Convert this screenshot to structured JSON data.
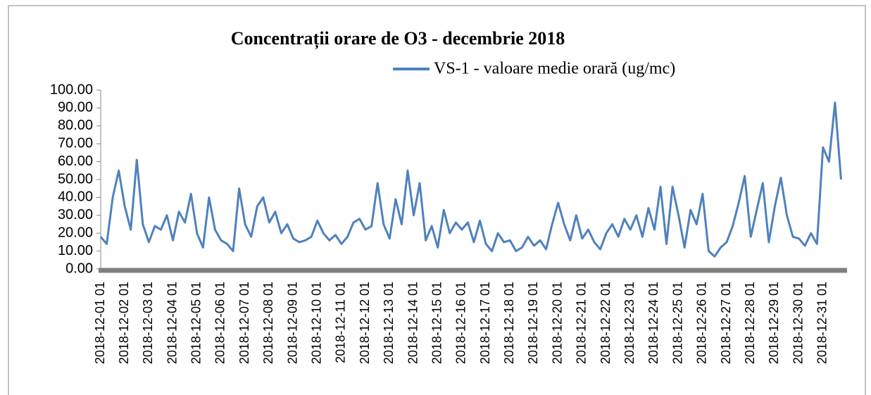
{
  "chart_data": {
    "type": "line",
    "title": "Concentrații orare de O3 - decembrie 2018",
    "categories": [
      "2018-12-01 01",
      null,
      null,
      null,
      "2018-12-02 01",
      null,
      null,
      null,
      "2018-12-03 01",
      null,
      null,
      null,
      "2018-12-04 01",
      null,
      null,
      null,
      "2018-12-05 01",
      null,
      null,
      null,
      "2018-12-06 01",
      null,
      null,
      null,
      "2018-12-07 01",
      null,
      null,
      null,
      "2018-12-08 01",
      null,
      null,
      null,
      "2018-12-09 01",
      null,
      null,
      null,
      "2018-12-10 01",
      null,
      null,
      null,
      "2018-12-11 01",
      null,
      null,
      null,
      "2018-12-12 01",
      null,
      null,
      null,
      "2018-12-13 01",
      null,
      null,
      null,
      "2018-12-14 01",
      null,
      null,
      null,
      "2018-12-15 01",
      null,
      null,
      null,
      "2018-12-16 01",
      null,
      null,
      null,
      "2018-12-17 01",
      null,
      null,
      null,
      "2018-12-18 01",
      null,
      null,
      null,
      "2018-12-19 01",
      null,
      null,
      null,
      "2018-12-20 01",
      null,
      null,
      null,
      "2018-12-21 01",
      null,
      null,
      null,
      "2018-12-22 01",
      null,
      null,
      null,
      "2018-12-23 01",
      null,
      null,
      null,
      "2018-12-24 01",
      null,
      null,
      null,
      "2018-12-25 01",
      null,
      null,
      null,
      "2018-12-26 01",
      null,
      null,
      null,
      "2018-12-27 01",
      null,
      null,
      null,
      "2018-12-28 01",
      null,
      null,
      null,
      "2018-12-29 01",
      null,
      null,
      null,
      "2018-12-30 01",
      null,
      null,
      null,
      "2018-12-31 01",
      null,
      null,
      null
    ],
    "series": [
      {
        "name": "VS-1 - valoare medie orară (ug/mc)",
        "color": "#4f81bd",
        "values": [
          18,
          14,
          40,
          55,
          35,
          22,
          61,
          25,
          15,
          24,
          22,
          30,
          16,
          32,
          26,
          42,
          20,
          12,
          40,
          22,
          16,
          14,
          10,
          45,
          25,
          18,
          35,
          40,
          26,
          32,
          20,
          25,
          17,
          15,
          16,
          18,
          27,
          20,
          16,
          19,
          14,
          18,
          26,
          28,
          22,
          24,
          48,
          25,
          17,
          39,
          25,
          55,
          30,
          48,
          16,
          24,
          12,
          33,
          20,
          26,
          22,
          26,
          15,
          27,
          14,
          10,
          20,
          15,
          16,
          10,
          12,
          18,
          13,
          16,
          11,
          25,
          37,
          25,
          16,
          30,
          17,
          22,
          15,
          11,
          20,
          25,
          18,
          28,
          22,
          30,
          18,
          34,
          22,
          46,
          14,
          46,
          30,
          12,
          33,
          25,
          42,
          10,
          7,
          12,
          15,
          24,
          37,
          52,
          18,
          33,
          48,
          15,
          35,
          51,
          30,
          18,
          17,
          13,
          20,
          14,
          68,
          60,
          93,
          50
        ]
      }
    ],
    "ylim": [
      0,
      100
    ],
    "yticks": [
      {
        "value": 0,
        "label": "0.00"
      },
      {
        "value": 10,
        "label": "10.00"
      },
      {
        "value": 20,
        "label": "20.00"
      },
      {
        "value": 30,
        "label": "30.00"
      },
      {
        "value": 40,
        "label": "40.00"
      },
      {
        "value": 50,
        "label": "50.00"
      },
      {
        "value": 60,
        "label": "60.00"
      },
      {
        "value": 70,
        "label": "70.00"
      },
      {
        "value": 80,
        "label": "80.00"
      },
      {
        "value": 90,
        "label": "90.00"
      },
      {
        "value": 100,
        "label": "100.00"
      }
    ],
    "legend": "top-right"
  }
}
